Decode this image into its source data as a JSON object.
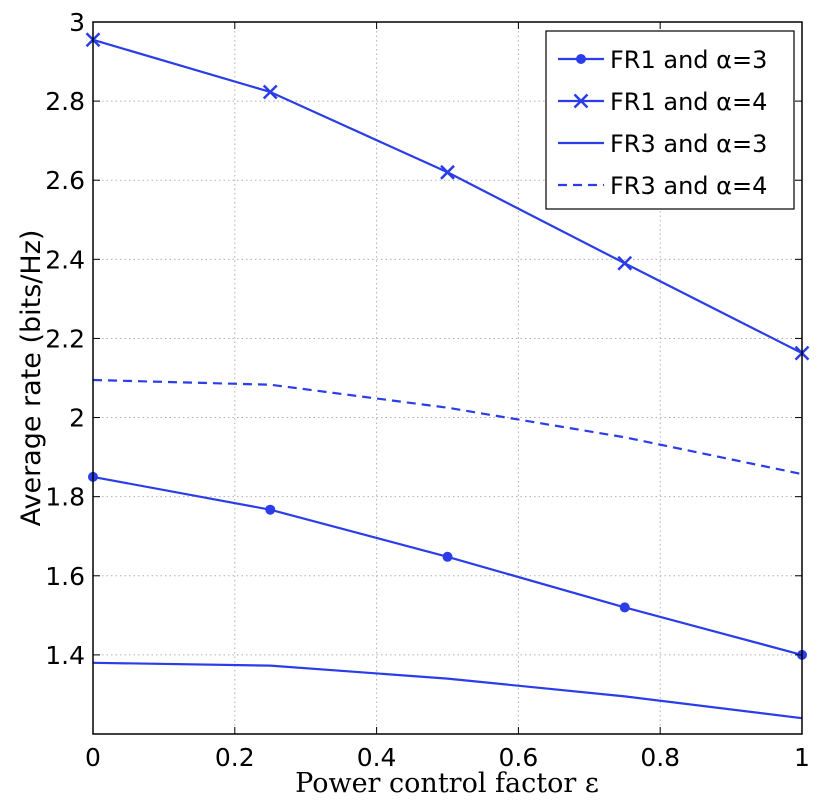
{
  "chart_data": {
    "type": "line",
    "title": "",
    "xlabel": "Power control factor ε",
    "ylabel": "Average rate (bits/Hz)",
    "xlim": [
      0,
      1
    ],
    "ylim": [
      1.2,
      3
    ],
    "x_ticks": [
      "0",
      "0.2",
      "0.4",
      "0.6",
      "0.8",
      "1"
    ],
    "y_ticks": [
      "1.4",
      "1.6",
      "1.8",
      "2",
      "2.2",
      "2.4",
      "2.6",
      "2.8",
      "3"
    ],
    "grid": true,
    "legend_position": "top-right",
    "color": "#2a3de8",
    "x": [
      0,
      0.25,
      0.5,
      0.75,
      1
    ],
    "series": [
      {
        "name": "FR1 and α=3",
        "values": [
          1.85,
          1.767,
          1.648,
          1.52,
          1.4
        ],
        "line": "solid",
        "marker": "dot"
      },
      {
        "name": "FR1 and α=4",
        "values": [
          2.955,
          2.823,
          2.62,
          2.39,
          2.163
        ],
        "line": "solid",
        "marker": "x"
      },
      {
        "name": "FR3 and α=3",
        "values": [
          1.38,
          1.373,
          1.34,
          1.295,
          1.24
        ],
        "line": "solid",
        "marker": "none"
      },
      {
        "name": "FR3 and α=4",
        "values": [
          2.095,
          2.083,
          2.025,
          1.95,
          1.857
        ],
        "line": "dashed",
        "marker": "none"
      }
    ]
  }
}
